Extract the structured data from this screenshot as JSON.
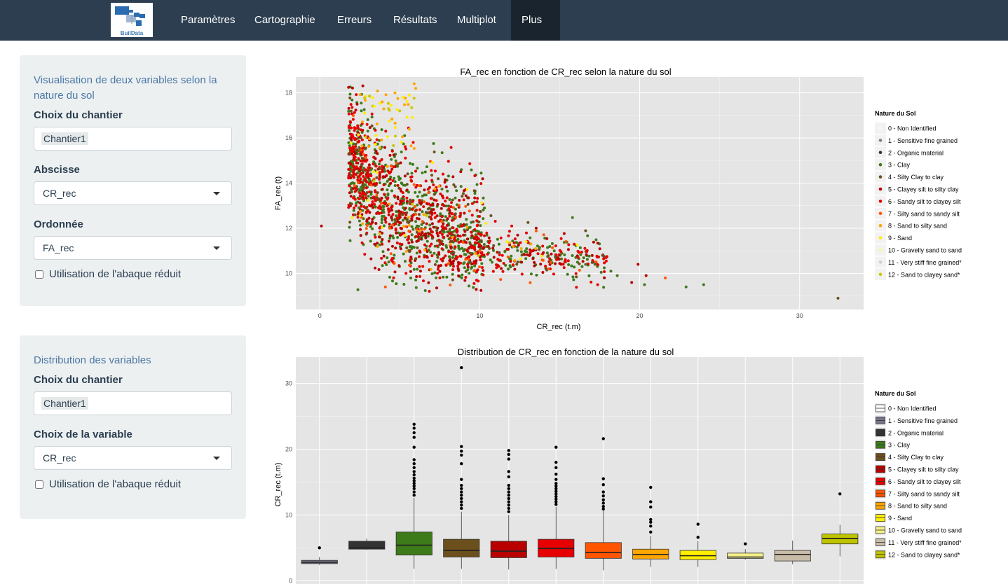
{
  "navbar": {
    "logo_text": "BuilData",
    "items": [
      {
        "label": "Paramètres"
      },
      {
        "label": "Cartographie"
      },
      {
        "label": "Erreurs"
      },
      {
        "label": "Résultats"
      },
      {
        "label": "Multiplot"
      },
      {
        "label": "Plus"
      }
    ]
  },
  "panel1": {
    "title": "Visualisation de deux variables selon la nature du sol",
    "chantier_label": "Choix du chantier",
    "chantier_value": "Chantier1",
    "abscisse_label": "Abscisse",
    "abscisse_value": "CR_rec",
    "ordonnee_label": "Ordonnée",
    "ordonnee_value": "FA_rec",
    "checkbox_label": "Utilisation de l'abaque réduit"
  },
  "panel2": {
    "title": "Distribution des variables",
    "chantier_label": "Choix du chantier",
    "chantier_value": "Chantier1",
    "variable_label": "Choix de la variable",
    "variable_value": "CR_rec",
    "checkbox_label": "Utilisation de l'abaque réduit"
  },
  "legend": {
    "title": "Nature du Sol",
    "items": [
      {
        "label": "0 - Non Identified",
        "point_color": "#f8f8f8",
        "box_color": "#ffffff"
      },
      {
        "label": "1 - Sensitive fine grained",
        "point_color": "#7f7f7f",
        "box_color": "#77748a"
      },
      {
        "label": "2 -  Organic material",
        "point_color": "#333333",
        "box_color": "#333333"
      },
      {
        "label": "3 - Clay",
        "point_color": "#3d7a1a",
        "box_color": "#3d7a1a"
      },
      {
        "label": "4 - Silty Clay to clay",
        "point_color": "#6b4f1d",
        "box_color": "#6b4f1d"
      },
      {
        "label": "5 - Clayey silt to silty clay",
        "point_color": "#b80000",
        "box_color": "#b80000"
      },
      {
        "label": "6 - Sandy silt to clayey silt",
        "point_color": "#e60000",
        "box_color": "#e60000"
      },
      {
        "label": "7 - Silty sand to sandy silt",
        "point_color": "#ff5500",
        "box_color": "#ff5500"
      },
      {
        "label": "8 - Sand to silty sand",
        "point_color": "#ffa500",
        "box_color": "#ffa500"
      },
      {
        "label": "9 - Sand",
        "point_color": "#ffee00",
        "box_color": "#ffee00"
      },
      {
        "label": "10 - Gravelly sand to sand",
        "point_color": "#fbf5a0",
        "box_color": "#f4f08a"
      },
      {
        "label": "11 - Very stiff fine grained*",
        "point_color": "#cfcfcf",
        "box_color": "#c8bca8"
      },
      {
        "label": "12 - Sand to clayey sand*",
        "point_color": "#c8c800",
        "box_color": "#c0c400"
      }
    ]
  },
  "chart_data": [
    {
      "type": "scatter",
      "title": "FA_rec en fonction de CR_rec selon la nature du sol",
      "xlabel": "CR_rec (t.m)",
      "ylabel": "FA_rec (t)",
      "xlim": [
        -1.5,
        34
      ],
      "ylim": [
        8.4,
        18.7
      ],
      "xticks": [
        0,
        10,
        20,
        30
      ],
      "yticks": [
        10,
        12,
        14,
        16,
        18
      ],
      "grid": true,
      "legend": "right",
      "points": [
        {
          "x": 0.1,
          "y": 12.1,
          "c": 5
        },
        {
          "x": 32.4,
          "y": 8.9,
          "c": 4
        },
        {
          "x": 24.0,
          "y": 9.5,
          "c": 3
        },
        {
          "x": 22.9,
          "y": 9.4,
          "c": 3
        },
        {
          "x": 21.6,
          "y": 9.8,
          "c": 7
        },
        {
          "x": 20.4,
          "y": 9.9,
          "c": 5
        },
        {
          "x": 20.3,
          "y": 9.5,
          "c": 3
        },
        {
          "x": 19.9,
          "y": 10.4,
          "c": 5
        },
        {
          "x": 19.5,
          "y": 9.6,
          "c": 5
        },
        {
          "x": 18.6,
          "y": 9.9,
          "c": 3
        },
        {
          "x": 18.2,
          "y": 10.1,
          "c": 3
        },
        {
          "x": 17.9,
          "y": 10.7,
          "c": 6
        },
        {
          "x": 17.2,
          "y": 10.4,
          "c": 3
        },
        {
          "x": 16.4,
          "y": 10.3,
          "c": 3
        },
        {
          "x": 13.2,
          "y": 11.3,
          "c": 8
        },
        {
          "x": 13.5,
          "y": 11.1,
          "c": 8
        },
        {
          "x": 12.9,
          "y": 11.4,
          "c": 9
        },
        {
          "x": 12.6,
          "y": 11.1,
          "c": 8
        },
        {
          "x": 13.9,
          "y": 10.6,
          "c": 7
        },
        {
          "x": 14.3,
          "y": 10.2,
          "c": 7
        },
        {
          "x": 12.1,
          "y": 11.2,
          "c": 8
        },
        {
          "x": 11.7,
          "y": 11.4,
          "c": 9
        },
        {
          "x": 12.0,
          "y": 12.1,
          "c": 6
        },
        {
          "x": 3.4,
          "y": 17.4,
          "c": 9
        },
        {
          "x": 2.8,
          "y": 17.1,
          "c": 9
        },
        {
          "x": 3.9,
          "y": 17.6,
          "c": 8
        },
        {
          "x": 5.2,
          "y": 17.8,
          "c": 9
        },
        {
          "x": 4.7,
          "y": 18.0,
          "c": 8
        },
        {
          "x": 5.9,
          "y": 18.4,
          "c": 8
        },
        {
          "x": 5.6,
          "y": 17.9,
          "c": 9
        },
        {
          "x": 6.0,
          "y": 18.2,
          "c": 8
        },
        {
          "x": 5.0,
          "y": 17.2,
          "c": 12
        },
        {
          "x": 4.3,
          "y": 17.3,
          "c": 12
        }
      ],
      "clouds": [
        {
          "c": 3,
          "n": 650,
          "seed": 11
        },
        {
          "c": 5,
          "n": 380,
          "seed": 23
        },
        {
          "c": 6,
          "n": 480,
          "seed": 37
        },
        {
          "c": 4,
          "n": 120,
          "seed": 41
        },
        {
          "c": 7,
          "n": 60,
          "seed": 53
        },
        {
          "c": 8,
          "n": 45,
          "seed": 67
        },
        {
          "c": 9,
          "n": 30,
          "seed": 71
        },
        {
          "c": 12,
          "n": 15,
          "seed": 83
        }
      ]
    },
    {
      "type": "box",
      "title": "Distribution de CR_rec en fonction de la nature du sol",
      "xlabel": "",
      "ylabel": "CR_rec (t.m)",
      "ylim": [
        -0.5,
        34
      ],
      "yticks": [
        0,
        10,
        20,
        30
      ],
      "grid": true,
      "legend": "right",
      "boxes": [
        {
          "c": 1,
          "min": 2.4,
          "q1": 2.6,
          "med": 2.8,
          "q3": 3.1,
          "max": 3.6,
          "outliers": [
            5.0
          ]
        },
        {
          "c": 2,
          "min": 4.7,
          "q1": 4.8,
          "med": 5.0,
          "q3": 6.0,
          "max": 6.4,
          "outliers": []
        },
        {
          "c": 3,
          "min": 1.8,
          "q1": 3.9,
          "med": 5.4,
          "q3": 7.4,
          "max": 12.6,
          "outliers": [
            13.0,
            13.5,
            14.0,
            14.4,
            14.8,
            15.2,
            15.6,
            16.1,
            16.6,
            17.2,
            17.8,
            18.4,
            20.3,
            21.8,
            22.5,
            23.2,
            23.8
          ]
        },
        {
          "c": 4,
          "min": 1.8,
          "q1": 3.6,
          "med": 4.6,
          "q3": 6.3,
          "max": 10.5,
          "outliers": [
            11.0,
            11.5,
            12.0,
            12.5,
            13.0,
            13.5,
            14.0,
            14.5,
            15.4,
            17.8,
            19.1,
            19.7,
            20.4,
            32.4
          ]
        },
        {
          "c": 5,
          "min": 1.7,
          "q1": 3.5,
          "med": 4.5,
          "q3": 6.0,
          "max": 10.0,
          "outliers": [
            10.5,
            11.0,
            11.5,
            12.0,
            12.5,
            13.0,
            13.5,
            14.0,
            14.5,
            15.8,
            16.6,
            18.5,
            19.2,
            19.8
          ]
        },
        {
          "c": 6,
          "min": 1.8,
          "q1": 3.6,
          "med": 4.9,
          "q3": 6.3,
          "max": 11.2,
          "outliers": [
            11.6,
            12.0,
            12.4,
            12.8,
            13.2,
            13.6,
            14.0,
            14.4,
            14.8,
            15.4,
            16.2,
            17.2,
            18.0,
            20.3
          ]
        },
        {
          "c": 7,
          "min": 1.6,
          "q1": 3.4,
          "med": 4.3,
          "q3": 5.8,
          "max": 10.6,
          "outliers": [
            10.9,
            11.3,
            11.8,
            12.3,
            12.9,
            13.5,
            14.6,
            15.5,
            21.6
          ]
        },
        {
          "c": 8,
          "min": 2.1,
          "q1": 3.3,
          "med": 4.0,
          "q3": 4.8,
          "max": 6.8,
          "outliers": [
            7.4,
            8.3,
            8.9,
            9.3,
            11.2,
            12.0,
            14.2
          ]
        },
        {
          "c": 9,
          "min": 2.1,
          "q1": 3.2,
          "med": 3.8,
          "q3": 4.6,
          "max": 6.0,
          "outliers": [
            6.6,
            8.6
          ]
        },
        {
          "c": 10,
          "min": 3.2,
          "q1": 3.4,
          "med": 3.6,
          "q3": 4.2,
          "max": 4.8,
          "outliers": [
            5.6
          ]
        },
        {
          "c": 11,
          "min": 2.5,
          "q1": 3.0,
          "med": 4.0,
          "q3": 4.6,
          "max": 6.1,
          "outliers": []
        },
        {
          "c": 12,
          "min": 3.7,
          "q1": 5.6,
          "med": 6.4,
          "q3": 7.1,
          "max": 8.5,
          "outliers": [
            13.2
          ]
        }
      ]
    }
  ]
}
